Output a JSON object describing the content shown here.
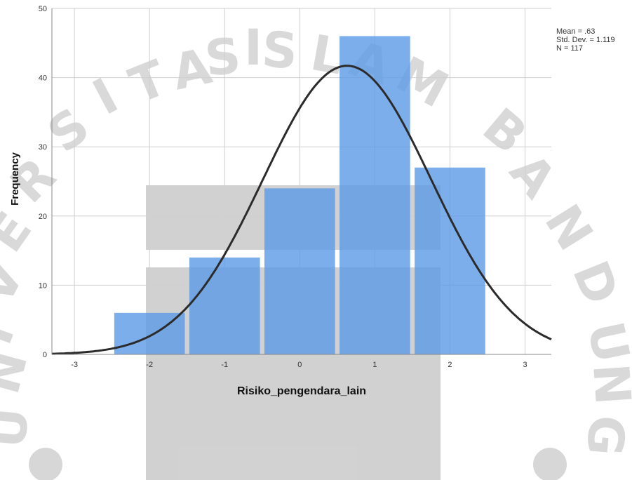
{
  "chart_data": {
    "type": "bar",
    "subtype": "histogram",
    "bins": [
      {
        "center": -2,
        "frequency": 6
      },
      {
        "center": -1,
        "frequency": 14
      },
      {
        "center": 0,
        "frequency": 24
      },
      {
        "center": 1,
        "frequency": 46
      },
      {
        "center": 2,
        "frequency": 27
      }
    ],
    "bin_width": 1,
    "normal_curve": {
      "mean": 0.63,
      "std_dev": 1.119,
      "n": 117
    },
    "xlabel": "Risiko_pengendara_lain",
    "ylabel": "Frequency",
    "xlim": [
      -3.3,
      3.35
    ],
    "ylim": [
      0,
      50
    ],
    "x_ticks": [
      -3,
      -2,
      -1,
      0,
      1,
      2,
      3
    ],
    "x_tick_labels": [
      "-3",
      "-2",
      "-1",
      "0",
      "1",
      "2",
      "3"
    ],
    "y_ticks": [
      0,
      10,
      20,
      30,
      40,
      50
    ],
    "y_tick_labels": [
      "0",
      "10",
      "20",
      "30",
      "40",
      "50"
    ],
    "grid": true,
    "stats_box": {
      "mean_line": "Mean = .63",
      "std_line": "Std. Dev. = 1.119",
      "n_line": "N = 117"
    },
    "colors": {
      "bar": "#5b9ae6",
      "bar_opacity": 0.8,
      "curve": "#2b2b2b",
      "grid": "#cfcfcf"
    }
  },
  "watermark": {
    "text": "UNIVERSITAS ISLAM BANDUNG",
    "color": "#8a8a8a"
  }
}
